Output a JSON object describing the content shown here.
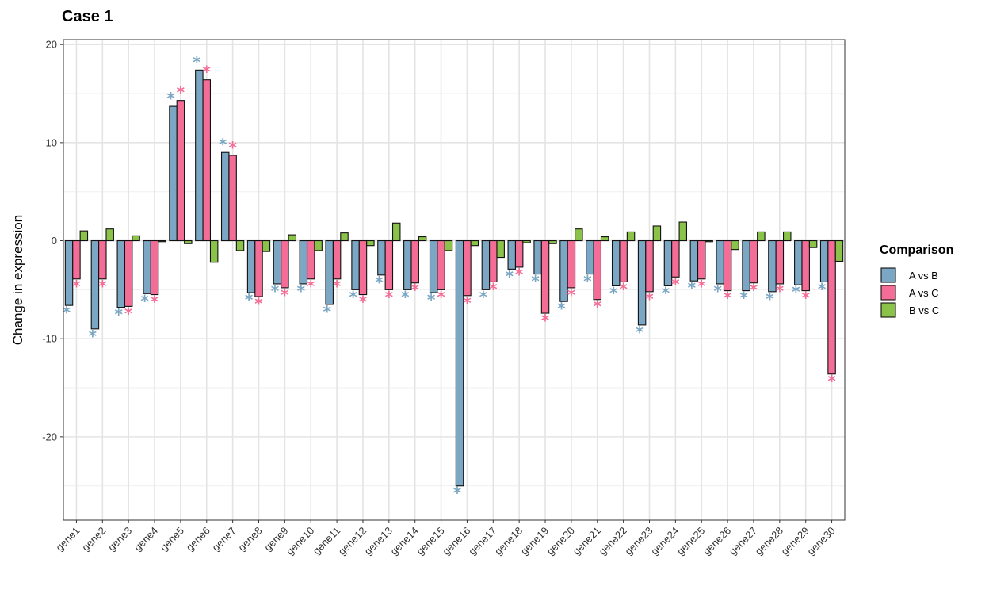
{
  "chart_data": {
    "type": "bar",
    "title": "Case 1",
    "xlabel": "",
    "ylabel": "Change in expression",
    "ylim": [
      -28.5,
      20.5
    ],
    "yticks": [
      20,
      10,
      0,
      -10,
      -20
    ],
    "grid": true,
    "legend_title": "Comparison",
    "legend_position": "right",
    "categories": [
      "gene1",
      "gene2",
      "gene3",
      "gene4",
      "gene5",
      "gene6",
      "gene7",
      "gene8",
      "gene9",
      "gene10",
      "gene11",
      "gene12",
      "gene13",
      "gene14",
      "gene15",
      "gene16",
      "gene17",
      "gene18",
      "gene19",
      "gene20",
      "gene21",
      "gene22",
      "gene23",
      "gene24",
      "gene25",
      "gene26",
      "gene27",
      "gene28",
      "gene29",
      "gene30"
    ],
    "series": [
      {
        "name": "A vs B",
        "color": "#7ba7c4",
        "values": [
          -6.6,
          -9.0,
          -6.8,
          -5.4,
          13.7,
          17.4,
          9.0,
          -5.3,
          -4.4,
          -4.4,
          -6.5,
          -5.0,
          -3.5,
          -5.0,
          -5.3,
          -25.0,
          -5.0,
          -2.9,
          -3.4,
          -6.2,
          -3.4,
          -4.6,
          -8.6,
          -4.6,
          -4.1,
          -4.4,
          -5.1,
          -5.2,
          -4.5,
          -4.2
        ],
        "significant": [
          true,
          true,
          true,
          true,
          true,
          true,
          true,
          true,
          true,
          true,
          true,
          true,
          true,
          true,
          true,
          true,
          true,
          true,
          true,
          true,
          true,
          true,
          true,
          true,
          true,
          true,
          true,
          true,
          true,
          true
        ]
      },
      {
        "name": "A vs C",
        "color": "#f46d96",
        "values": [
          -3.9,
          -3.9,
          -6.7,
          -5.5,
          14.3,
          16.4,
          8.7,
          -5.7,
          -4.8,
          -3.9,
          -3.9,
          -5.5,
          -5.0,
          -4.3,
          -5.0,
          -5.6,
          -4.2,
          -2.7,
          -7.4,
          -4.8,
          -6.0,
          -4.2,
          -5.2,
          -3.7,
          -3.9,
          -5.1,
          -4.3,
          -4.4,
          -5.1,
          -13.6
        ],
        "significant": [
          true,
          true,
          true,
          true,
          true,
          true,
          true,
          true,
          true,
          true,
          true,
          true,
          true,
          true,
          true,
          true,
          true,
          true,
          true,
          true,
          true,
          true,
          true,
          true,
          true,
          true,
          true,
          true,
          true,
          true
        ]
      },
      {
        "name": "B vs C",
        "color": "#8bc34a",
        "values": [
          1.0,
          1.2,
          0.5,
          -0.1,
          -0.3,
          -2.2,
          -1.0,
          -1.1,
          0.6,
          -1.0,
          0.8,
          -0.5,
          1.8,
          0.4,
          -1.0,
          -0.5,
          -1.7,
          -0.2,
          -0.3,
          1.2,
          0.4,
          0.9,
          1.5,
          1.9,
          -0.1,
          -0.9,
          0.9,
          0.9,
          -0.7,
          -2.1
        ],
        "significant": [
          false,
          false,
          false,
          false,
          false,
          false,
          false,
          false,
          false,
          false,
          false,
          false,
          false,
          false,
          false,
          false,
          false,
          false,
          false,
          false,
          false,
          false,
          false,
          false,
          false,
          false,
          false,
          false,
          false,
          false
        ]
      }
    ]
  }
}
